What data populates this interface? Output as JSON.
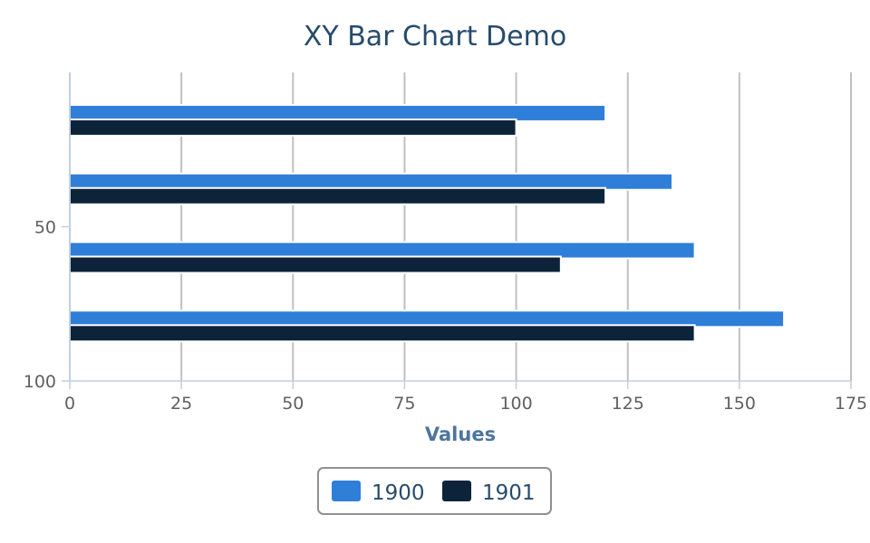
{
  "chart_data": {
    "type": "bar",
    "orientation": "horizontal",
    "title": "XY Bar Chart Demo",
    "xlabel": "Values",
    "ylabel": "",
    "xlim": [
      0,
      175
    ],
    "x_ticks": [
      "0",
      "25",
      "50",
      "75",
      "100",
      "125",
      "150",
      "175"
    ],
    "ylim": [
      0,
      100
    ],
    "y_ticks": [
      "50",
      "100"
    ],
    "y_axis_reversed": true,
    "categories": [
      "",
      "",
      "",
      ""
    ],
    "series": [
      {
        "name": "1900",
        "color": "#2f7ed8",
        "values": [
          120,
          135,
          140,
          160
        ]
      },
      {
        "name": "1901",
        "color": "#0d233a",
        "values": [
          100,
          120,
          110,
          140
        ]
      }
    ],
    "grid": "vertical",
    "legend_position": "bottom-center"
  }
}
